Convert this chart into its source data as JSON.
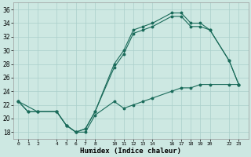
{
  "xlabel": "Humidex (Indice chaleur)",
  "bg_color": "#cde8e2",
  "grid_color": "#aacfca",
  "line_color": "#1a6b5a",
  "x_ticks": [
    0,
    1,
    2,
    4,
    5,
    6,
    7,
    8,
    10,
    11,
    12,
    13,
    14,
    16,
    17,
    18,
    19,
    20,
    22,
    23
  ],
  "x_tick_labels": [
    "0",
    "1",
    "2",
    "4",
    "5",
    "6",
    "7",
    "8",
    "10",
    "11",
    "12",
    "13",
    "14",
    "16",
    "17",
    "18",
    "19",
    "20",
    "22",
    "23"
  ],
  "y_ticks": [
    18,
    20,
    22,
    24,
    26,
    28,
    30,
    32,
    34,
    36
  ],
  "ylim": [
    17,
    37
  ],
  "xlim": [
    -0.5,
    24.0
  ],
  "line1_x": [
    0,
    1,
    2,
    4,
    5,
    6,
    7,
    8,
    10,
    11,
    12,
    13,
    14,
    16,
    17,
    18,
    19,
    20,
    22,
    23
  ],
  "line1_y": [
    22.5,
    21.0,
    21.0,
    21.0,
    19.0,
    18.0,
    18.0,
    20.5,
    22.5,
    21.5,
    22.0,
    22.5,
    23.0,
    24.0,
    24.5,
    24.5,
    25.0,
    25.0,
    25.0,
    25.0
  ],
  "line2_x": [
    0,
    1,
    2,
    4,
    5,
    6,
    7,
    8,
    10,
    11,
    12,
    13,
    14,
    16,
    17,
    18,
    19,
    20,
    22,
    23
  ],
  "line2_y": [
    22.5,
    21.0,
    21.0,
    21.0,
    19.0,
    18.0,
    18.5,
    21.0,
    28.0,
    30.0,
    33.0,
    33.5,
    34.0,
    35.5,
    35.5,
    34.0,
    34.0,
    33.0,
    28.5,
    25.0
  ],
  "line3_x": [
    0,
    2,
    4,
    5,
    6,
    7,
    8,
    10,
    11,
    12,
    13,
    14,
    16,
    17,
    18,
    19,
    20,
    22,
    23
  ],
  "line3_y": [
    22.5,
    21.0,
    21.0,
    19.0,
    18.0,
    18.5,
    21.0,
    27.5,
    29.5,
    32.5,
    33.0,
    33.5,
    35.0,
    35.0,
    33.5,
    33.5,
    33.0,
    28.5,
    25.0
  ],
  "marker_size": 1.8,
  "line_width": 0.8
}
